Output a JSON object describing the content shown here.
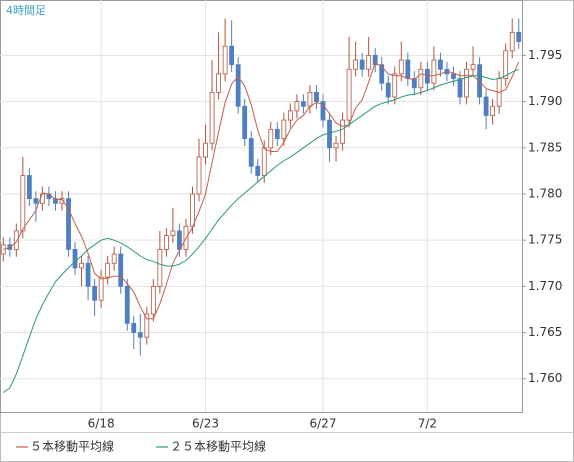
{
  "chart_data": {
    "type": "candlestick",
    "title": "4時間足",
    "categories": [
      null,
      null,
      null,
      null,
      null,
      null,
      null,
      null,
      null,
      null,
      null,
      null,
      null,
      null,
      null,
      "6/18",
      null,
      null,
      null,
      null,
      null,
      null,
      null,
      null,
      null,
      null,
      null,
      null,
      null,
      null,
      null,
      "6/23",
      null,
      null,
      null,
      null,
      null,
      null,
      null,
      null,
      null,
      null,
      null,
      null,
      null,
      null,
      null,
      null,
      null,
      "6/27",
      null,
      null,
      null,
      null,
      null,
      null,
      null,
      null,
      null,
      null,
      null,
      null,
      null,
      null,
      null,
      "7/2",
      null,
      null,
      null,
      null,
      null,
      null,
      null,
      null,
      null,
      null,
      null,
      null,
      null,
      null
    ],
    "open": [
      1.7735,
      1.7745,
      1.774,
      1.776,
      1.782,
      1.7795,
      1.779,
      1.78,
      1.7795,
      1.779,
      1.7795,
      1.774,
      1.772,
      1.7725,
      1.77,
      1.7685,
      1.771,
      1.7725,
      1.7735,
      1.77,
      1.766,
      1.765,
      1.7645,
      1.767,
      1.77,
      1.774,
      1.7755,
      1.776,
      1.774,
      1.7765,
      1.78,
      1.784,
      1.7855,
      1.791,
      1.793,
      1.796,
      1.794,
      1.7895,
      1.786,
      1.783,
      1.782,
      1.785,
      1.787,
      1.786,
      1.788,
      1.789,
      1.79,
      1.7895,
      1.791,
      1.79,
      1.788,
      1.785,
      1.7855,
      1.788,
      1.7935,
      1.7945,
      1.7935,
      1.795,
      1.794,
      1.792,
      1.7905,
      1.793,
      1.7945,
      1.7925,
      1.7915,
      1.7935,
      1.792,
      1.7945,
      1.7935,
      1.793,
      1.7925,
      1.7905,
      1.7935,
      1.794,
      1.7905,
      1.7885,
      1.7895,
      1.7925,
      1.7955,
      1.7975
    ],
    "high": [
      1.7753,
      1.7753,
      1.7768,
      1.784,
      1.7828,
      1.7803,
      1.7808,
      1.7808,
      1.7803,
      1.7803,
      1.7803,
      1.7748,
      1.7733,
      1.7733,
      1.7708,
      1.7718,
      1.7733,
      1.7743,
      1.7743,
      1.7708,
      1.7668,
      1.767,
      1.7678,
      1.7708,
      1.776,
      1.7763,
      1.7785,
      1.7768,
      1.7773,
      1.7808,
      1.786,
      1.7875,
      1.7945,
      1.7975,
      1.799,
      1.7988,
      1.7948,
      1.7903,
      1.7868,
      1.7838,
      1.7858,
      1.7878,
      1.7878,
      1.7888,
      1.7898,
      1.7908,
      1.7908,
      1.7918,
      1.7918,
      1.7908,
      1.7888,
      1.7863,
      1.7888,
      1.797,
      1.7965,
      1.7953,
      1.797,
      1.7958,
      1.7948,
      1.7928,
      1.7938,
      1.7965,
      1.7953,
      1.7933,
      1.7943,
      1.7943,
      1.796,
      1.7953,
      1.7943,
      1.7938,
      1.7933,
      1.7943,
      1.796,
      1.7948,
      1.7913,
      1.7903,
      1.7933,
      1.7963,
      1.799,
      1.799
    ],
    "low": [
      1.7727,
      1.7732,
      1.7732,
      1.7752,
      1.7787,
      1.777,
      1.7782,
      1.7787,
      1.7782,
      1.7782,
      1.7732,
      1.7712,
      1.77,
      1.7685,
      1.7668,
      1.7677,
      1.7702,
      1.7717,
      1.7692,
      1.7652,
      1.7632,
      1.7625,
      1.7637,
      1.7662,
      1.7692,
      1.7732,
      1.7747,
      1.7732,
      1.7732,
      1.7757,
      1.7792,
      1.7832,
      1.7847,
      1.7902,
      1.7922,
      1.7932,
      1.7887,
      1.7852,
      1.7822,
      1.7812,
      1.7812,
      1.7842,
      1.7852,
      1.7852,
      1.7872,
      1.7882,
      1.7887,
      1.7887,
      1.7892,
      1.7872,
      1.7835,
      1.7835,
      1.7847,
      1.7872,
      1.7927,
      1.7927,
      1.7927,
      1.7932,
      1.7912,
      1.7897,
      1.7897,
      1.7922,
      1.7917,
      1.7907,
      1.7907,
      1.7912,
      1.7912,
      1.7927,
      1.7922,
      1.7917,
      1.7897,
      1.7897,
      1.7927,
      1.7897,
      1.787,
      1.7875,
      1.7887,
      1.7917,
      1.7947,
      1.7957
    ],
    "close": [
      1.7745,
      1.774,
      1.776,
      1.782,
      1.7795,
      1.779,
      1.78,
      1.7795,
      1.779,
      1.7795,
      1.774,
      1.772,
      1.7725,
      1.77,
      1.7685,
      1.771,
      1.7725,
      1.7735,
      1.77,
      1.766,
      1.765,
      1.7645,
      1.767,
      1.77,
      1.774,
      1.7755,
      1.776,
      1.774,
      1.7765,
      1.78,
      1.784,
      1.7855,
      1.791,
      1.793,
      1.796,
      1.794,
      1.7895,
      1.786,
      1.783,
      1.782,
      1.785,
      1.787,
      1.786,
      1.788,
      1.789,
      1.79,
      1.7895,
      1.791,
      1.79,
      1.788,
      1.785,
      1.7855,
      1.788,
      1.7935,
      1.7945,
      1.7935,
      1.795,
      1.794,
      1.792,
      1.7905,
      1.793,
      1.7945,
      1.7925,
      1.7915,
      1.7935,
      1.792,
      1.7945,
      1.7935,
      1.793,
      1.7925,
      1.7905,
      1.7935,
      1.794,
      1.7905,
      1.7885,
      1.7895,
      1.7925,
      1.7955,
      1.7975,
      1.7965
    ],
    "up_color": "#b5533c",
    "down_color": "#4f7fc0",
    "series": [
      {
        "name": "５本移動平均線",
        "color": "#c0604a",
        "values": [
          1.774,
          1.7742,
          1.7748,
          1.7762,
          1.7772,
          1.7782,
          1.7801,
          1.78,
          1.7794,
          1.7794,
          1.7784,
          1.7768,
          1.7754,
          1.7736,
          1.7714,
          1.7708,
          1.7709,
          1.7711,
          1.7711,
          1.7703,
          1.7694,
          1.7678,
          1.7665,
          1.7665,
          1.7681,
          1.7702,
          1.7725,
          1.7739,
          1.7752,
          1.7764,
          1.7781,
          1.78,
          1.7834,
          1.7867,
          1.7899,
          1.7919,
          1.7927,
          1.7917,
          1.7897,
          1.7869,
          1.7849,
          1.7846,
          1.7846,
          1.7856,
          1.787,
          1.788,
          1.7885,
          1.7895,
          1.7899,
          1.7897,
          1.7887,
          1.7877,
          1.7873,
          1.7875,
          1.7893,
          1.7902,
          1.7921,
          1.7942,
          1.7938,
          1.793,
          1.7928,
          1.7928,
          1.7925,
          1.7924,
          1.793,
          1.7928,
          1.7928,
          1.793,
          1.7933,
          1.7931,
          1.7928,
          1.7928,
          1.7928,
          1.7922,
          1.7914,
          1.7912,
          1.791,
          1.7913,
          1.7927,
          1.7943
        ]
      },
      {
        "name": "２５本移動平均線",
        "color": "#2a9a7a",
        "values": [
          1.7585,
          1.759,
          1.7605,
          1.7625,
          1.7645,
          1.7665,
          1.768,
          1.7693,
          1.7705,
          1.7713,
          1.772,
          1.7727,
          1.7733,
          1.774,
          1.7745,
          1.775,
          1.7752,
          1.775,
          1.7747,
          1.7743,
          1.7738,
          1.7733,
          1.7729,
          1.7727,
          1.7724,
          1.7722,
          1.7722,
          1.7724,
          1.7728,
          1.7735,
          1.7743,
          1.7752,
          1.7762,
          1.7772,
          1.778,
          1.7788,
          1.7795,
          1.7801,
          1.7807,
          1.7813,
          1.7819,
          1.7825,
          1.7831,
          1.7836,
          1.784,
          1.7845,
          1.785,
          1.7855,
          1.786,
          1.7864,
          1.7866,
          1.7868,
          1.787,
          1.7875,
          1.788,
          1.7885,
          1.789,
          1.7895,
          1.7898,
          1.79,
          1.7902,
          1.7905,
          1.7907,
          1.7908,
          1.791,
          1.7912,
          1.7915,
          1.7918,
          1.792,
          1.7922,
          1.7924,
          1.7926,
          1.7928,
          1.7928,
          1.7926,
          1.7924,
          1.7925,
          1.7928,
          1.7932,
          1.7935
        ]
      }
    ],
    "ylim": [
      1.7564,
      1.801
    ],
    "yticks": [
      {
        "value": 1.76,
        "label": "1.760"
      },
      {
        "value": 1.765,
        "label": "1.765"
      },
      {
        "value": 1.77,
        "label": "1.770"
      },
      {
        "value": 1.775,
        "label": "1.775"
      },
      {
        "value": 1.78,
        "label": "1.780"
      },
      {
        "value": 1.785,
        "label": "1.785"
      },
      {
        "value": 1.79,
        "label": "1.790"
      },
      {
        "value": 1.795,
        "label": "1.795"
      }
    ],
    "grid": true
  }
}
